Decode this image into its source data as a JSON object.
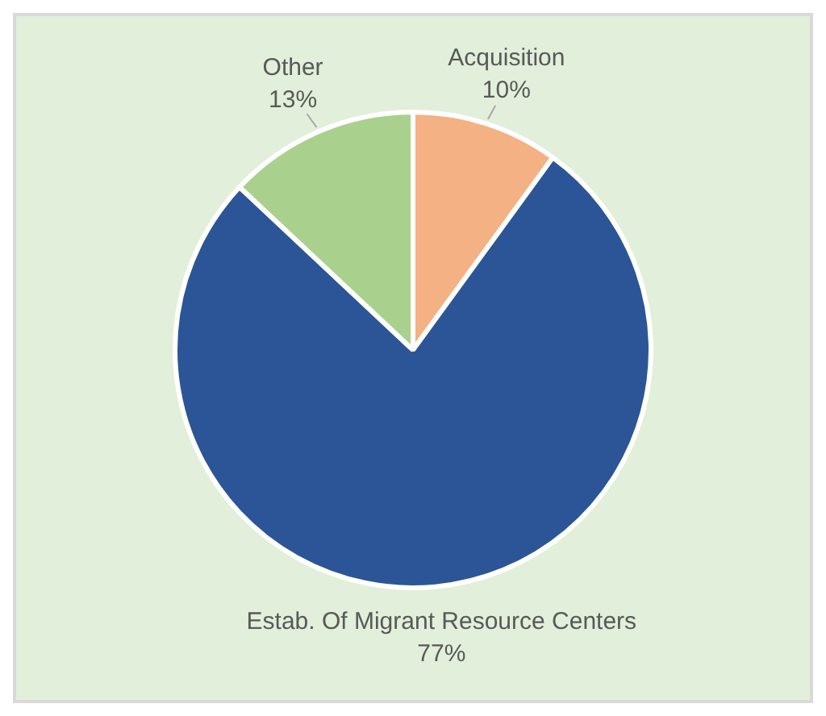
{
  "chart_data": {
    "type": "pie",
    "categories": [
      "Acquisition",
      "Estab. Of Migrant Resource Centers",
      "Other"
    ],
    "values": [
      10,
      77,
      13
    ],
    "colors": [
      "#f4b183",
      "#2b5597",
      "#aad08e"
    ],
    "value_labels": [
      "10%",
      "77%",
      "13%"
    ],
    "legend": false
  }
}
